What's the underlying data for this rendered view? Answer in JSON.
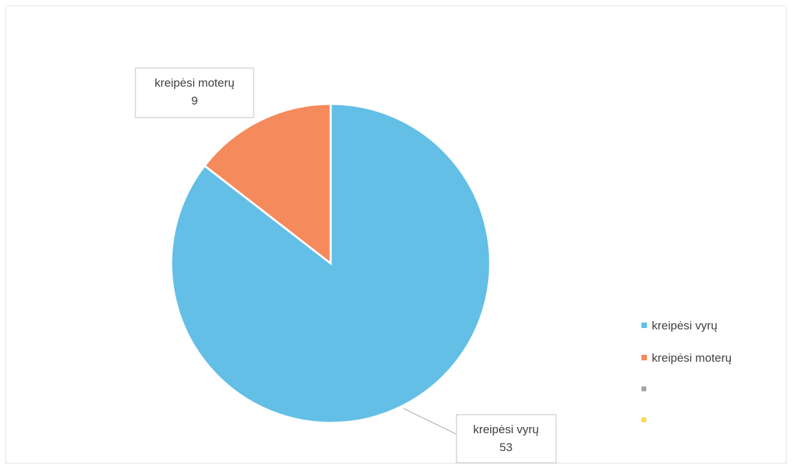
{
  "chart_data": {
    "type": "pie",
    "title": "",
    "slices": [
      {
        "label": "kreipėsi vyrų",
        "value": 53,
        "color": "#63bfe6"
      },
      {
        "label": "kreipėsi moterų",
        "value": 9,
        "color": "#f58a5c"
      },
      {
        "label": "",
        "value": 0,
        "color": "#a6a6a6"
      },
      {
        "label": "",
        "value": 0,
        "color": "#ffd84a"
      }
    ],
    "data_labels": [
      {
        "label": "kreipėsi moterų",
        "value": "9"
      },
      {
        "label": "kreipėsi vyrų",
        "value": "53"
      }
    ],
    "legend": {
      "position": "right",
      "entries": [
        {
          "label": "kreipėsi vyrų",
          "color": "#63bfe6"
        },
        {
          "label": "kreipėsi moterų",
          "color": "#f58a5c"
        },
        {
          "label": "",
          "color": "#a6a6a6"
        },
        {
          "label": "",
          "color": "#ffd84a"
        }
      ]
    }
  }
}
